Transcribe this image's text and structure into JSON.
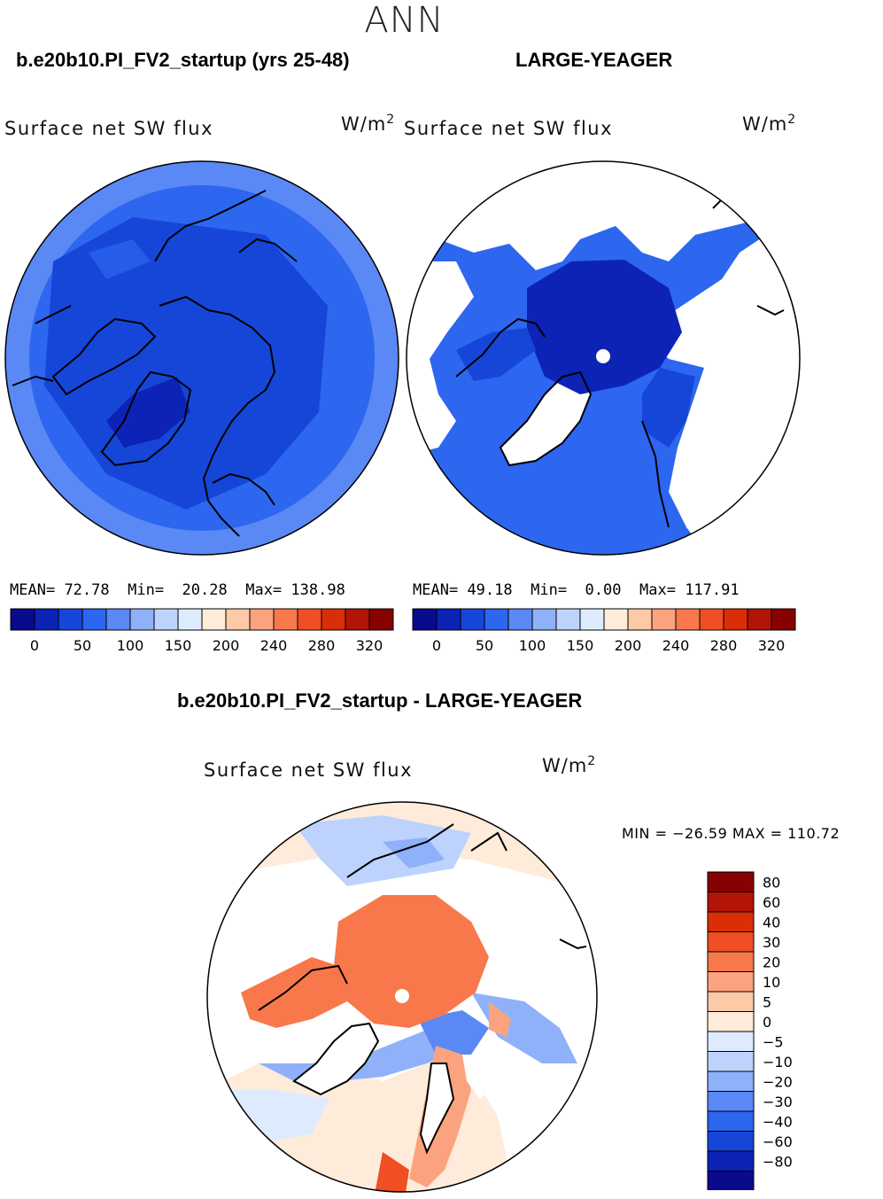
{
  "season": "ANN",
  "panels": [
    {
      "title": "b.e20b10.PI_FV2_startup (yrs 25-48)",
      "variable": "Surface net SW flux",
      "units": "W/m",
      "units_sup": "2",
      "stats": {
        "mean_label": "MEAN=",
        "mean": "72.78",
        "min_label": "Min=",
        "min": "20.28",
        "max_label": "Max=",
        "max": "138.98"
      }
    },
    {
      "title": "LARGE-YEAGER",
      "variable": "Surface net SW flux",
      "units": "W/m",
      "units_sup": "2",
      "stats": {
        "mean_label": "MEAN=",
        "mean": "49.18",
        "min_label": "Min=",
        "min": "0.00",
        "max_label": "Max=",
        "max": "117.91"
      }
    }
  ],
  "difference": {
    "title": "b.e20b10.PI_FV2_startup - LARGE-YEAGER",
    "variable": "Surface net SW flux",
    "units": "W/m",
    "units_sup": "2",
    "minmax": "MIN = −26.59  MAX = 110.72"
  },
  "chart_data": [
    {
      "type": "heatmap",
      "projection": "north polar stereographic",
      "title": "b.e20b10.PI_FV2_startup (yrs 25-48)",
      "variable": "Surface net SW flux",
      "units": "W/m2",
      "mean": 72.78,
      "min": 20.28,
      "max": 138.98,
      "colorbar_ticks": [
        "0",
        "50",
        "100",
        "150",
        "200",
        "240",
        "280",
        "320"
      ],
      "colorbar_colors": [
        "#0a0a8c",
        "#0d23b5",
        "#1646d8",
        "#2d66ef",
        "#5a88f5",
        "#8fb1fa",
        "#bdd3fd",
        "#deebff",
        "#feebd9",
        "#fdc9a6",
        "#fba37e",
        "#f8784b",
        "#ef4f22",
        "#da2e07",
        "#b21506",
        "#880101"
      ]
    },
    {
      "type": "heatmap",
      "projection": "north polar stereographic",
      "title": "LARGE-YEAGER",
      "variable": "Surface net SW flux",
      "units": "W/m2",
      "mean": 49.18,
      "min": 0.0,
      "max": 117.91,
      "colorbar_ticks": [
        "0",
        "50",
        "100",
        "150",
        "200",
        "240",
        "280",
        "320"
      ],
      "colorbar_colors": [
        "#0a0a8c",
        "#0d23b5",
        "#1646d8",
        "#2d66ef",
        "#5a88f5",
        "#8fb1fa",
        "#bdd3fd",
        "#deebff",
        "#feebd9",
        "#fdc9a6",
        "#fba37e",
        "#f8784b",
        "#ef4f22",
        "#da2e07",
        "#b21506",
        "#880101"
      ]
    },
    {
      "type": "heatmap",
      "projection": "north polar stereographic",
      "title": "b.e20b10.PI_FV2_startup - LARGE-YEAGER",
      "variable": "Surface net SW flux",
      "units": "W/m2",
      "min": -26.59,
      "max": 110.72,
      "colorbar_ticks": [
        "80",
        "60",
        "40",
        "30",
        "20",
        "10",
        "5",
        "0",
        "−5",
        "−10",
        "−20",
        "−30",
        "−40",
        "−60",
        "−80"
      ],
      "colorbar_colors": [
        "#880101",
        "#b21506",
        "#da2e07",
        "#ef4f22",
        "#f8784b",
        "#fba37e",
        "#fdc9a6",
        "#feebd9",
        "#deebff",
        "#bdd3fd",
        "#8fb1fa",
        "#5a88f5",
        "#2d66ef",
        "#1646d8",
        "#0d23b5",
        "#0a0a8c"
      ]
    }
  ]
}
